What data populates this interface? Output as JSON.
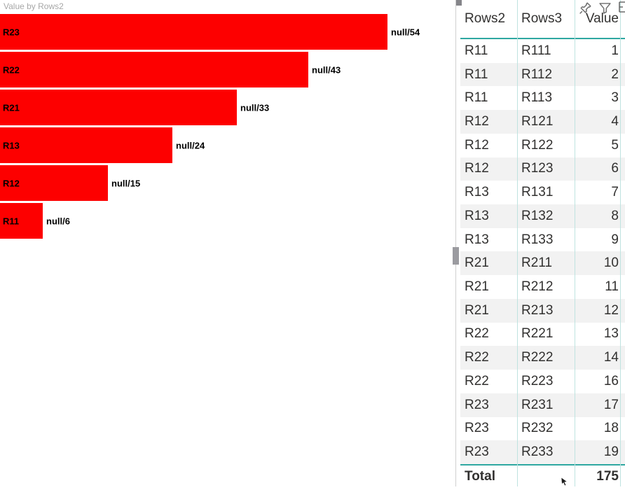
{
  "chart_data": [
    {
      "type": "bar",
      "orientation": "horizontal",
      "title": "Value by Rows2",
      "categories": [
        "R23",
        "R22",
        "R21",
        "R13",
        "R12",
        "R11"
      ],
      "values": [
        54,
        43,
        33,
        24,
        15,
        6
      ],
      "data_labels": [
        "null/54",
        "null/43",
        "null/33",
        "null/24",
        "null/15",
        "null/6"
      ],
      "xlim": [
        0,
        57
      ],
      "grid": false,
      "legend": "none",
      "bar_color": "#fd0000",
      "label_color": "#000000",
      "title_color": "#a7a7a7"
    },
    {
      "type": "table",
      "columns": [
        "Rows2",
        "Rows3",
        "Value"
      ],
      "rows": [
        [
          "R11",
          "R111",
          1
        ],
        [
          "R11",
          "R112",
          2
        ],
        [
          "R11",
          "R113",
          3
        ],
        [
          "R12",
          "R121",
          4
        ],
        [
          "R12",
          "R122",
          5
        ],
        [
          "R12",
          "R123",
          6
        ],
        [
          "R13",
          "R131",
          7
        ],
        [
          "R13",
          "R132",
          8
        ],
        [
          "R13",
          "R133",
          9
        ],
        [
          "R21",
          "R211",
          10
        ],
        [
          "R21",
          "R212",
          11
        ],
        [
          "R21",
          "R213",
          12
        ],
        [
          "R22",
          "R221",
          13
        ],
        [
          "R22",
          "R222",
          14
        ],
        [
          "R22",
          "R223",
          16
        ],
        [
          "R23",
          "R231",
          17
        ],
        [
          "R23",
          "R232",
          18
        ],
        [
          "R23",
          "R233",
          19
        ]
      ],
      "total_row": {
        "label": "Total",
        "value": 175
      }
    }
  ],
  "header_icons": {
    "pin": "pin-visual",
    "filter": "filter",
    "partial": "focus-mode-partial"
  },
  "colors": {
    "bar_red": "#fd0000",
    "teal_strong": "#2fa8a1",
    "teal_light": "#bfe3e0",
    "row_alt": "#f2f2f2",
    "title_gray": "#a7a7a7",
    "text_dark": "#323130",
    "scrollbar_thumb": "#9b9ba0",
    "icon_gray": "#6b6b6b"
  }
}
